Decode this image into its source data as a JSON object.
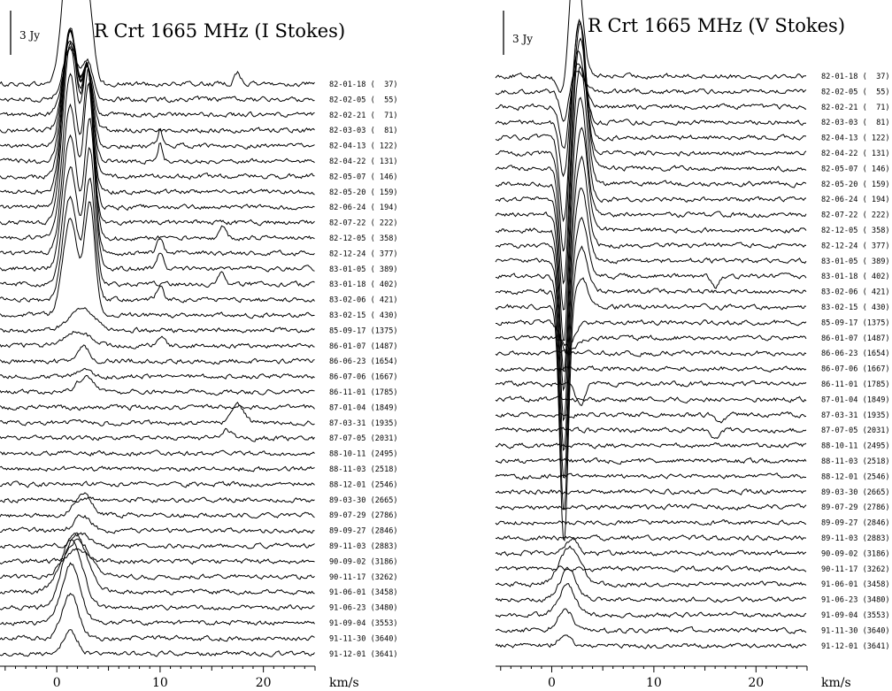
{
  "chart_data": [
    {
      "type": "line",
      "title": "R Crt 1665 MHz (I Stokes)",
      "scale_label": "3 Jy",
      "xlabel": "km/s",
      "xlim": [
        -5.5,
        25
      ],
      "x_ticks": [
        "0",
        "10",
        "20"
      ],
      "series": [
        {
          "name": "82-01-18 (  37)",
          "peaks": [
            [
              1.3,
              10.5,
              0.7
            ],
            [
              3.0,
              6.0,
              0.5
            ],
            [
              17.5,
              0.8,
              0.3
            ]
          ]
        },
        {
          "name": "82-02-05 (  55)",
          "peaks": [
            [
              1.3,
              3.5,
              0.7
            ],
            [
              3.0,
              2.5,
              0.5
            ]
          ]
        },
        {
          "name": "82-02-21 (  71)",
          "peaks": [
            [
              1.3,
              4.5,
              0.7
            ],
            [
              3.0,
              3.0,
              0.5
            ]
          ]
        },
        {
          "name": "82-03-03 (  81)",
          "peaks": [
            [
              1.3,
              6.0,
              0.7
            ],
            [
              3.0,
              4.0,
              0.5
            ]
          ]
        },
        {
          "name": "82-04-13 ( 122)",
          "peaks": [
            [
              1.3,
              8.0,
              0.7
            ],
            [
              3.0,
              5.0,
              0.5
            ],
            [
              10.0,
              1.0,
              0.2
            ]
          ]
        },
        {
          "name": "82-04-22 ( 131)",
          "peaks": [
            [
              1.3,
              9.0,
              0.7
            ],
            [
              3.0,
              6.0,
              0.5
            ],
            [
              10.0,
              1.2,
              0.2
            ]
          ]
        },
        {
          "name": "82-05-07 ( 146)",
          "peaks": [
            [
              1.3,
              10.0,
              0.7
            ],
            [
              3.0,
              7.0,
              0.5
            ]
          ]
        },
        {
          "name": "82-05-20 ( 159)",
          "peaks": [
            [
              1.3,
              11.0,
              0.7
            ],
            [
              3.0,
              8.0,
              0.5
            ]
          ]
        },
        {
          "name": "82-06-24 ( 194)",
          "peaks": [
            [
              1.3,
              12.0,
              0.7
            ],
            [
              3.0,
              9.0,
              0.5
            ]
          ]
        },
        {
          "name": "82-07-22 ( 222)",
          "peaks": [
            [
              1.3,
              12.0,
              0.7
            ],
            [
              3.0,
              10.0,
              0.5
            ]
          ]
        },
        {
          "name": "82-12-05 ( 358)",
          "peaks": [
            [
              1.3,
              11.0,
              0.7
            ],
            [
              3.1,
              11.0,
              0.5
            ],
            [
              16.0,
              0.8,
              0.3
            ]
          ]
        },
        {
          "name": "82-12-24 ( 377)",
          "peaks": [
            [
              1.3,
              10.0,
              0.7
            ],
            [
              3.1,
              11.0,
              0.5
            ],
            [
              10.0,
              1.0,
              0.3
            ]
          ]
        },
        {
          "name": "83-01-05 ( 389)",
          "peaks": [
            [
              1.3,
              9.0,
              0.7
            ],
            [
              3.2,
              10.0,
              0.5
            ],
            [
              10.0,
              1.2,
              0.3
            ]
          ]
        },
        {
          "name": "83-01-18 ( 402)",
          "peaks": [
            [
              1.3,
              8.0,
              0.7
            ],
            [
              3.2,
              9.0,
              0.5
            ],
            [
              16.0,
              1.0,
              0.3
            ]
          ]
        },
        {
          "name": "83-02-06 ( 421)",
          "peaks": [
            [
              1.3,
              7.0,
              0.7
            ],
            [
              3.2,
              8.0,
              0.5
            ],
            [
              10.0,
              1.0,
              0.3
            ]
          ]
        },
        {
          "name": "83-02-15 ( 430)",
          "peaks": [
            [
              1.3,
              6.5,
              0.7
            ],
            [
              3.2,
              7.5,
              0.5
            ]
          ]
        },
        {
          "name": "85-09-17 (1375)",
          "peaks": [
            [
              2.5,
              1.5,
              1.2
            ]
          ]
        },
        {
          "name": "86-01-07 (1487)",
          "peaks": [
            [
              2.0,
              1.0,
              1.2
            ],
            [
              10.0,
              0.6,
              0.4
            ]
          ]
        },
        {
          "name": "86-06-23 (1654)",
          "peaks": [
            [
              2.5,
              1.0,
              0.6
            ]
          ]
        },
        {
          "name": "86-07-06 (1667)",
          "peaks": [
            [
              2.5,
              0.5,
              0.6
            ]
          ]
        },
        {
          "name": "86-11-01 (1785)",
          "peaks": [
            [
              2.8,
              1.0,
              0.8
            ]
          ]
        },
        {
          "name": "87-01-04 (1849)",
          "peaks": []
        },
        {
          "name": "87-03-31 (1935)",
          "peaks": [
            [
              17.5,
              1.2,
              0.6
            ]
          ]
        },
        {
          "name": "87-07-05 (2031)",
          "peaks": [
            [
              16.5,
              0.5,
              0.5
            ]
          ]
        },
        {
          "name": "88-10-11 (2495)",
          "peaks": []
        },
        {
          "name": "88-11-03 (2518)",
          "peaks": []
        },
        {
          "name": "88-12-01 (2546)",
          "peaks": []
        },
        {
          "name": "89-03-30 (2665)",
          "peaks": []
        },
        {
          "name": "89-07-29 (2786)",
          "peaks": [
            [
              2.5,
              1.5,
              0.8
            ]
          ]
        },
        {
          "name": "89-09-27 (2846)",
          "peaks": [
            [
              2.5,
              1.0,
              0.8
            ]
          ]
        },
        {
          "name": "89-11-03 (2883)",
          "peaks": [
            [
              2.3,
              0.8,
              0.8
            ]
          ]
        },
        {
          "name": "90-09-02 (3186)",
          "peaks": [
            [
              2.0,
              0.8,
              0.8
            ]
          ]
        },
        {
          "name": "90-11-17 (3262)",
          "peaks": [
            [
              2.0,
              2.5,
              1.2
            ]
          ]
        },
        {
          "name": "91-06-01 (3458)",
          "peaks": [
            [
              1.7,
              4.0,
              1.2
            ]
          ]
        },
        {
          "name": "91-06-23 (3480)",
          "peaks": [
            [
              1.5,
              4.5,
              1.0
            ]
          ]
        },
        {
          "name": "91-09-04 (3553)",
          "peaks": [
            [
              1.4,
              4.0,
              0.9
            ]
          ]
        },
        {
          "name": "91-11-30 (3640)",
          "peaks": [
            [
              1.3,
              3.0,
              0.8
            ]
          ]
        },
        {
          "name": "91-12-01 (3641)",
          "peaks": [
            [
              1.3,
              1.5,
              0.7
            ]
          ]
        }
      ]
    },
    {
      "type": "line",
      "title": "R Crt 1665 MHz (V Stokes)",
      "scale_label": "3 Jy",
      "xlabel": "km/s",
      "xlim": [
        -5.5,
        25
      ],
      "x_ticks": [
        "0",
        "10",
        "20"
      ],
      "series": [
        {
          "name": "82-01-18 (  37)",
          "peaks": [
            [
              1.2,
              -2.0,
              0.5
            ],
            [
              2.3,
              9.0,
              0.6
            ]
          ]
        },
        {
          "name": "82-02-05 (  55)",
          "peaks": [
            [
              1.2,
              -2.0,
              0.4
            ],
            [
              2.5,
              1.5,
              0.6
            ]
          ]
        },
        {
          "name": "82-02-21 (  71)",
          "peaks": [
            [
              1.2,
              -3.0,
              0.4
            ],
            [
              2.6,
              3.0,
              0.6
            ]
          ]
        },
        {
          "name": "82-03-03 (  81)",
          "peaks": [
            [
              1.2,
              -4.0,
              0.4
            ],
            [
              2.6,
              5.0,
              0.6
            ]
          ]
        },
        {
          "name": "82-04-13 ( 122)",
          "peaks": [
            [
              1.2,
              -6.0,
              0.4
            ],
            [
              2.7,
              8.0,
              0.6
            ]
          ]
        },
        {
          "name": "82-04-22 ( 131)",
          "peaks": [
            [
              1.2,
              -7.0,
              0.4
            ],
            [
              2.7,
              9.0,
              0.6
            ]
          ]
        },
        {
          "name": "82-05-07 ( 146)",
          "peaks": [
            [
              1.2,
              -8.0,
              0.4
            ],
            [
              2.8,
              10.0,
              0.6
            ]
          ]
        },
        {
          "name": "82-05-20 ( 159)",
          "peaks": [
            [
              1.2,
              -9.0,
              0.4
            ],
            [
              2.8,
              10.0,
              0.6
            ]
          ]
        },
        {
          "name": "82-06-24 ( 194)",
          "peaks": [
            [
              1.2,
              -10.0,
              0.4
            ],
            [
              2.8,
              9.0,
              0.6
            ]
          ]
        },
        {
          "name": "82-07-22 ( 222)",
          "peaks": [
            [
              1.2,
              -11.0,
              0.4
            ],
            [
              2.8,
              8.0,
              0.6
            ]
          ]
        },
        {
          "name": "82-12-05 ( 358)",
          "peaks": [
            [
              1.2,
              -11.0,
              0.4
            ],
            [
              2.9,
              7.0,
              0.6
            ]
          ]
        },
        {
          "name": "82-12-24 ( 377)",
          "peaks": [
            [
              1.2,
              -12.0,
              0.4
            ],
            [
              2.9,
              6.0,
              0.6
            ]
          ]
        },
        {
          "name": "83-01-05 ( 389)",
          "peaks": [
            [
              1.2,
              -13.0,
              0.4
            ],
            [
              2.9,
              5.0,
              0.6
            ]
          ]
        },
        {
          "name": "83-01-18 ( 402)",
          "peaks": [
            [
              1.2,
              -14.0,
              0.4
            ],
            [
              2.9,
              4.0,
              0.6
            ],
            [
              16.0,
              -0.8,
              0.3
            ]
          ]
        },
        {
          "name": "83-02-06 ( 421)",
          "peaks": [
            [
              1.2,
              -15.0,
              0.4
            ],
            [
              2.9,
              3.0,
              0.6
            ]
          ]
        },
        {
          "name": "83-02-15 ( 430)",
          "peaks": [
            [
              1.2,
              -16.0,
              0.4
            ],
            [
              2.9,
              2.0,
              0.6
            ]
          ]
        },
        {
          "name": "85-09-17 (1375)",
          "peaks": [
            [
              1.5,
              -2.0,
              0.6
            ]
          ]
        },
        {
          "name": "86-01-07 (1487)",
          "peaks": [
            [
              2.0,
              -0.8,
              0.6
            ]
          ]
        },
        {
          "name": "86-06-23 (1654)",
          "peaks": []
        },
        {
          "name": "86-07-06 (1667)",
          "peaks": []
        },
        {
          "name": "86-11-01 (1785)",
          "peaks": [
            [
              2.8,
              -1.5,
              0.4
            ]
          ]
        },
        {
          "name": "87-01-04 (1849)",
          "peaks": []
        },
        {
          "name": "87-03-31 (1935)",
          "peaks": [
            [
              16.5,
              -0.6,
              0.4
            ]
          ]
        },
        {
          "name": "87-07-05 (2031)",
          "peaks": [
            [
              16.0,
              -0.5,
              0.4
            ]
          ]
        },
        {
          "name": "88-10-11 (2495)",
          "peaks": []
        },
        {
          "name": "88-11-03 (2518)",
          "peaks": []
        },
        {
          "name": "88-12-01 (2546)",
          "peaks": []
        },
        {
          "name": "89-03-30 (2665)",
          "peaks": []
        },
        {
          "name": "89-07-29 (2786)",
          "peaks": []
        },
        {
          "name": "89-09-27 (2846)",
          "peaks": []
        },
        {
          "name": "89-11-03 (2883)",
          "peaks": []
        },
        {
          "name": "90-09-02 (3186)",
          "peaks": [
            [
              2.0,
              1.0,
              0.6
            ]
          ]
        },
        {
          "name": "90-11-17 (3262)",
          "peaks": []
        },
        {
          "name": "91-06-01 (3458)",
          "peaks": [
            [
              1.8,
              2.5,
              1.0
            ]
          ]
        },
        {
          "name": "91-06-23 (3480)",
          "peaks": [
            [
              1.6,
              2.0,
              0.8
            ]
          ]
        },
        {
          "name": "91-09-04 (3553)",
          "peaks": [
            [
              1.5,
              2.0,
              0.8
            ]
          ]
        },
        {
          "name": "91-11-30 (3640)",
          "peaks": [
            [
              1.3,
              1.5,
              0.7
            ]
          ]
        },
        {
          "name": "91-12-01 (3641)",
          "peaks": [
            [
              1.3,
              0.8,
              0.6
            ]
          ]
        }
      ]
    }
  ]
}
